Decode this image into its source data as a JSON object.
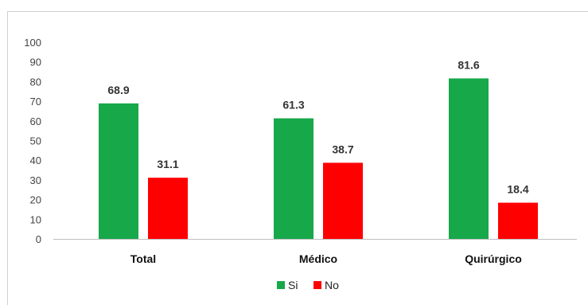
{
  "chart_data": {
    "type": "bar",
    "categories": [
      "Total",
      "Médico",
      "Quirúrgico"
    ],
    "series": [
      {
        "name": "Si",
        "values": [
          68.9,
          61.3,
          81.6
        ],
        "color": "#17a84a"
      },
      {
        "name": "No",
        "values": [
          31.1,
          38.7,
          18.4
        ],
        "color": "#ff0000"
      }
    ],
    "data_labels": [
      [
        "68.9",
        "61.3",
        "81.6"
      ],
      [
        "31.1",
        "38.7",
        "18.4"
      ]
    ],
    "title": "",
    "xlabel": "",
    "ylabel": "",
    "ylim": [
      0,
      100
    ],
    "yticks": [
      0,
      10,
      20,
      30,
      40,
      50,
      60,
      70,
      80,
      90,
      100
    ],
    "grid": false,
    "legend_position": "bottom"
  }
}
